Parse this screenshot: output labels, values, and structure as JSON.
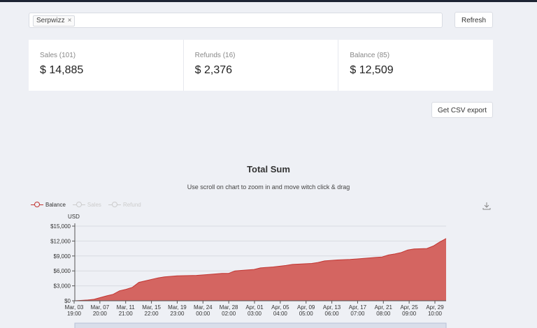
{
  "filter": {
    "tags": [
      "Serpwizz"
    ]
  },
  "buttons": {
    "refresh": "Refresh",
    "csv_export": "Get CSV export"
  },
  "stats": [
    {
      "label": "Sales (101)",
      "value": "$ 14,885"
    },
    {
      "label": "Refunds (16)",
      "value": "$ 2,376"
    },
    {
      "label": "Balance (85)",
      "value": "$ 12,509"
    }
  ],
  "icons": {
    "tag_remove": "×",
    "download": "download-icon"
  },
  "colors": {
    "balance": "#c23531",
    "background": "#eef0f5",
    "inactive_legend": "#cccccc"
  },
  "chart_data": {
    "type": "area",
    "title": "Total Sum",
    "subtitle": "Use scroll on chart to zoom in and move witch click & drag",
    "ylabel": "USD",
    "ylim": [
      0,
      15000
    ],
    "y_ticks": [
      "$0",
      "$3,000",
      "$6,000",
      "$9,000",
      "$12,000",
      "$15,000"
    ],
    "x_ticks": [
      [
        "Mar, 03",
        "19:00"
      ],
      [
        "Mar, 07",
        "20:00"
      ],
      [
        "Mar, 11",
        "21:00"
      ],
      [
        "Mar, 15",
        "22:00"
      ],
      [
        "Mar, 19",
        "23:00"
      ],
      [
        "Mar, 24",
        "00:00"
      ],
      [
        "Mar, 28",
        "02:00"
      ],
      [
        "Apr, 01",
        "03:00"
      ],
      [
        "Apr, 05",
        "04:00"
      ],
      [
        "Apr, 09",
        "05:00"
      ],
      [
        "Apr, 13",
        "06:00"
      ],
      [
        "Apr, 17",
        "07:00"
      ],
      [
        "Apr, 21",
        "08:00"
      ],
      [
        "Apr, 25",
        "09:00"
      ],
      [
        "Apr, 29",
        "10:00"
      ]
    ],
    "legend": [
      {
        "name": "Balance",
        "active": true
      },
      {
        "name": "Sales",
        "active": false
      },
      {
        "name": "Refund",
        "active": false
      }
    ],
    "series": [
      {
        "name": "Balance",
        "x": [
          "Mar 03",
          "Mar 05",
          "Mar 06",
          "Mar 07",
          "Mar 08",
          "Mar 09",
          "Mar 10",
          "Mar 11",
          "Mar 12",
          "Mar 13",
          "Mar 14",
          "Mar 15",
          "Mar 16",
          "Mar 17",
          "Mar 19",
          "Mar 22",
          "Mar 24",
          "Mar 26",
          "Mar 27",
          "Mar 28",
          "Mar 29",
          "Mar 31",
          "Apr 01",
          "Apr 03",
          "Apr 05",
          "Apr 06",
          "Apr 09",
          "Apr 10",
          "Apr 11",
          "Apr 13",
          "Apr 15",
          "Apr 17",
          "Apr 19",
          "Apr 20",
          "Apr 21",
          "Apr 22",
          "Apr 23",
          "Apr 24",
          "Apr 25",
          "Apr 27",
          "Apr 28",
          "Apr 29",
          "Apr 30"
        ],
        "values": [
          0,
          150,
          300,
          650,
          1000,
          1300,
          2000,
          2300,
          2700,
          3700,
          4000,
          4300,
          4600,
          4800,
          5000,
          5100,
          5300,
          5500,
          5500,
          6000,
          6100,
          6300,
          6600,
          6800,
          7100,
          7300,
          7500,
          7700,
          8000,
          8200,
          8300,
          8500,
          8700,
          8800,
          9200,
          9400,
          9700,
          10200,
          10400,
          10500,
          11000,
          11800,
          12500
        ]
      }
    ]
  }
}
